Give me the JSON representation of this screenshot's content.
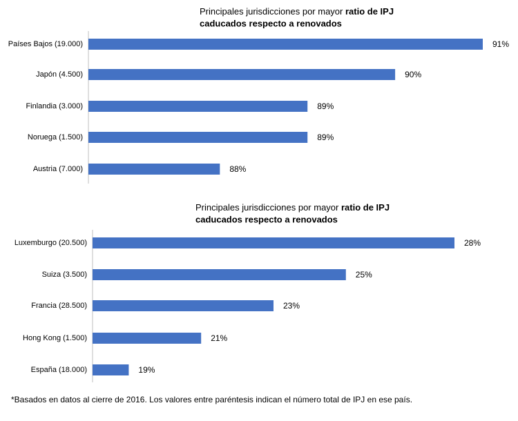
{
  "chart_data": [
    {
      "type": "bar",
      "orientation": "horizontal",
      "title": [
        "Principales jurisdicciones por mayor",
        "ratio de IPJ",
        "caducados respecto a renovados"
      ],
      "categories": [
        "Países Bajos (19.000)",
        "Japón (4.500)",
        "Finlandia (3.000)",
        "Noruega (1.500)",
        "Austria (7.000)"
      ],
      "values": [
        91,
        90,
        89,
        89,
        88
      ],
      "value_labels": [
        "91%",
        "90%",
        "89%",
        "89%",
        "88%"
      ],
      "color": "#4472c4",
      "xlim": [
        86.5,
        91
      ]
    },
    {
      "type": "bar",
      "orientation": "horizontal",
      "title": [
        "Principales jurisdicciones por mayor",
        "ratio de IPJ",
        "caducados respecto a renovados"
      ],
      "categories": [
        "Luxemburgo (20.500)",
        "Suiza (3.500)",
        "Francia (28.500)",
        "Hong Kong (1.500)",
        "España (18.000)"
      ],
      "values": [
        28,
        25,
        23,
        21,
        19
      ],
      "value_labels": [
        "28%",
        "25%",
        "23%",
        "21%",
        "19%"
      ],
      "color": "#4472c4",
      "xlim": [
        18,
        28
      ]
    }
  ],
  "footnote": "*Basados en datos al cierre de 2016. Los valores entre paréntesis indican el número total de IPJ en ese país."
}
